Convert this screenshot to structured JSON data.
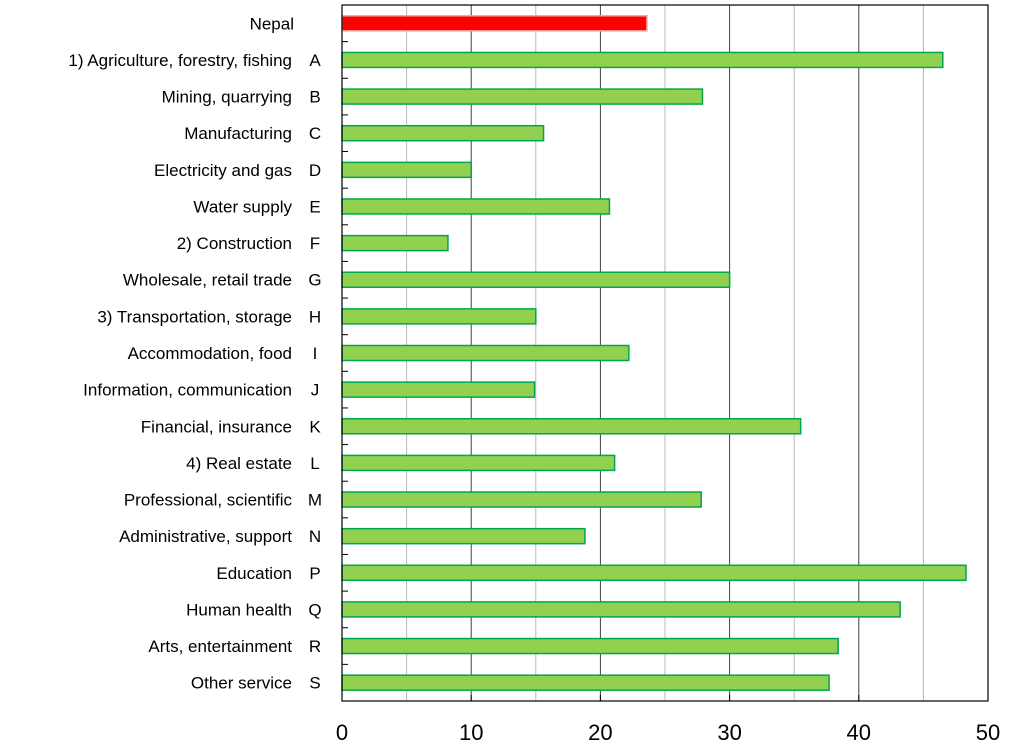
{
  "chart_data": {
    "type": "bar",
    "orientation": "horizontal",
    "title": "",
    "xlabel": "",
    "ylabel": "",
    "xlim": [
      0,
      50
    ],
    "x_ticks": [
      0,
      10,
      20,
      30,
      40,
      50
    ],
    "grid": "vertical",
    "highlight_color": "#ff0000",
    "bar_color": "#92d050",
    "bar_edge_color": "#00a651",
    "categories": [
      {
        "label": "Nepal",
        "code": "",
        "value": 23.6,
        "highlight": true
      },
      {
        "label": "1) Agriculture, forestry, fishing",
        "code": "A",
        "value": 46.5,
        "highlight": false
      },
      {
        "label": "Mining, quarrying",
        "code": "B",
        "value": 27.9,
        "highlight": false
      },
      {
        "label": "Manufacturing",
        "code": "C",
        "value": 15.6,
        "highlight": false
      },
      {
        "label": "Electricity and gas",
        "code": "D",
        "value": 10.0,
        "highlight": false
      },
      {
        "label": "Water supply",
        "code": "E",
        "value": 20.7,
        "highlight": false
      },
      {
        "label": "2) Construction",
        "code": "F",
        "value": 8.2,
        "highlight": false
      },
      {
        "label": "Wholesale, retail trade",
        "code": "G",
        "value": 30.0,
        "highlight": false
      },
      {
        "label": "3) Transportation, storage",
        "code": "H",
        "value": 15.0,
        "highlight": false
      },
      {
        "label": "Accommodation, food",
        "code": "I",
        "value": 22.2,
        "highlight": false
      },
      {
        "label": "Information, communication",
        "code": "J",
        "value": 14.9,
        "highlight": false
      },
      {
        "label": "Financial, insurance",
        "code": "K",
        "value": 35.5,
        "highlight": false
      },
      {
        "label": "4) Real estate",
        "code": "L",
        "value": 21.1,
        "highlight": false
      },
      {
        "label": "Professional, scientific",
        "code": "M",
        "value": 27.8,
        "highlight": false
      },
      {
        "label": "Administrative, support",
        "code": "N",
        "value": 18.8,
        "highlight": false
      },
      {
        "label": "Education",
        "code": "P",
        "value": 48.3,
        "highlight": false
      },
      {
        "label": "Human health",
        "code": "Q",
        "value": 43.2,
        "highlight": false
      },
      {
        "label": "Arts, entertainment",
        "code": "R",
        "value": 38.4,
        "highlight": false
      },
      {
        "label": "Other service",
        "code": "S",
        "value": 37.7,
        "highlight": false
      }
    ]
  }
}
